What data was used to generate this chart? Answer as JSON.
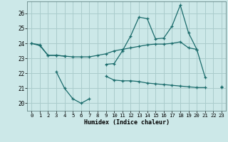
{
  "xlabel": "Humidex (Indice chaleur)",
  "background_color": "#cce8e8",
  "grid_color": "#aacccc",
  "line_color": "#1a6b6b",
  "x": [
    0,
    1,
    2,
    3,
    4,
    5,
    6,
    7,
    8,
    9,
    10,
    11,
    12,
    13,
    14,
    15,
    16,
    17,
    18,
    19,
    20,
    21,
    22,
    23
  ],
  "line1": [
    24.0,
    23.9,
    23.2,
    23.2,
    23.15,
    23.1,
    23.1,
    23.1,
    23.2,
    23.3,
    23.5,
    23.6,
    23.7,
    23.8,
    23.9,
    23.95,
    23.95,
    24.0,
    24.1,
    23.7,
    23.6,
    null,
    null,
    null
  ],
  "line2": [
    24.0,
    23.85,
    23.2,
    23.2,
    23.15,
    null,
    null,
    null,
    null,
    22.6,
    22.65,
    23.5,
    24.5,
    25.75,
    25.65,
    24.3,
    24.35,
    25.15,
    26.55,
    24.7,
    23.6,
    21.75,
    null,
    21.1
  ],
  "line3": [
    null,
    null,
    null,
    22.1,
    21.0,
    20.3,
    20.0,
    20.3,
    null,
    21.8,
    21.55,
    21.5,
    21.5,
    21.45,
    21.35,
    21.3,
    21.25,
    21.2,
    21.15,
    21.1,
    21.05,
    21.05,
    null,
    21.05
  ],
  "ylim": [
    19.5,
    26.8
  ],
  "yticks": [
    20,
    21,
    22,
    23,
    24,
    25,
    26
  ],
  "xticks": [
    0,
    1,
    2,
    3,
    4,
    5,
    6,
    7,
    8,
    9,
    10,
    11,
    12,
    13,
    14,
    15,
    16,
    17,
    18,
    19,
    20,
    21,
    22,
    23
  ]
}
